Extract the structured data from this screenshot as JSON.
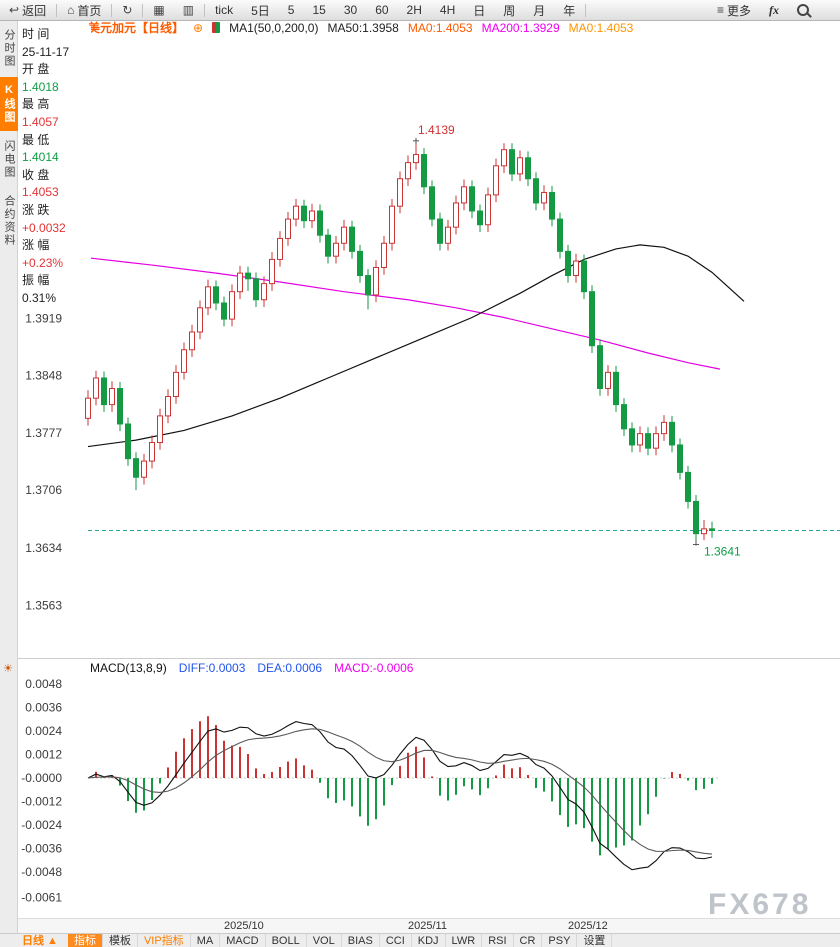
{
  "watermark": "FX678",
  "colors": {
    "up": "#cc3434",
    "down": "#149a43",
    "ma50": "#111111",
    "ma200": "#e400e4",
    "last_price": "#2aa79c",
    "accent_orange": "#ff7e00",
    "link_blue": "#2255ee",
    "magenta": "#f000f0"
  },
  "toolbar": {
    "items": [
      {
        "name": "back-button",
        "icon": "back-icon",
        "label": "返回",
        "sep": true
      },
      {
        "name": "home-button",
        "icon": "home-icon",
        "label": "首页",
        "sep": true
      },
      {
        "name": "refresh-button",
        "icon": "refresh-icon",
        "sep": true
      },
      {
        "name": "bar-chart-button",
        "icon": "bars-icon"
      },
      {
        "name": "volume-style-button",
        "icon": "grid-icon",
        "sep": true
      },
      {
        "name": "interval-tick",
        "label": "tick"
      },
      {
        "name": "interval-5d",
        "label": "5日"
      },
      {
        "name": "interval-5",
        "label": "5"
      },
      {
        "name": "interval-15",
        "label": "15"
      },
      {
        "name": "interval-30",
        "label": "30"
      },
      {
        "name": "interval-60",
        "label": "60"
      },
      {
        "name": "interval-2h",
        "label": "2H"
      },
      {
        "name": "interval-4h",
        "label": "4H"
      },
      {
        "name": "interval-day",
        "label": "日"
      },
      {
        "name": "interval-week",
        "label": "周"
      },
      {
        "name": "interval-month",
        "label": "月"
      },
      {
        "name": "interval-year",
        "label": "年",
        "sep": true
      },
      {
        "name": "more-button",
        "icon": "menu-icon",
        "label": "更多",
        "style": "push"
      },
      {
        "name": "fx-button",
        "label": "fx",
        "style": "fx"
      },
      {
        "name": "search-button",
        "icon": "search-icon",
        "style": "endpad"
      }
    ]
  },
  "left_tabs": [
    {
      "name": "tab-time-chart",
      "label": "分时图",
      "active": false
    },
    {
      "name": "tab-kline-chart",
      "label": "K线图",
      "active": true
    },
    {
      "name": "tab-lightning-chart",
      "label": "闪电图",
      "active": false
    },
    {
      "name": "tab-contract-info",
      "label": "合约资料",
      "active": false
    }
  ],
  "info_panel": {
    "rows": [
      {
        "label": "时 间",
        "value": "25-11-17",
        "cls": "k"
      },
      {
        "label": "开 盘",
        "value": "1.4018",
        "cls": "green"
      },
      {
        "label": "最 高",
        "value": "1.4057",
        "cls": "red"
      },
      {
        "label": "最 低",
        "value": "1.4014",
        "cls": "green"
      },
      {
        "label": "收 盘",
        "value": "1.4053",
        "cls": "red"
      },
      {
        "label": "涨 跌",
        "value": "+0.0032",
        "cls": "red"
      },
      {
        "label": "涨 幅",
        "value": "+0.23%",
        "cls": "red"
      },
      {
        "label": "振 幅",
        "value": "0.31%",
        "cls": "k"
      }
    ]
  },
  "chart_header": {
    "symbol": "美元加元【日线】",
    "add_icon": "⊕",
    "ma_label": "MA1(50,0,200,0)",
    "ma_values": [
      {
        "text": "MA50:1.3958",
        "color": "#222222"
      },
      {
        "text": "MA0:1.4053",
        "color": "#ff5a00"
      },
      {
        "text": "MA200:1.3929",
        "color": "#f000f0"
      },
      {
        "text": "MA0:1.4053",
        "color": "#ff9500"
      }
    ]
  },
  "macd_header": {
    "title": "MACD(13,8,9)",
    "items": [
      {
        "text": "DIFF:0.0003",
        "color": "#2255ee"
      },
      {
        "text": "DEA:0.0006",
        "color": "#2255ee"
      },
      {
        "text": "MACD:-0.0006",
        "color": "#f000f0"
      }
    ]
  },
  "bottom_bar": {
    "period_label": "日线",
    "period_arrow": "▲",
    "tabs": [
      {
        "key": "indicators",
        "label": "指标",
        "style": "selected"
      },
      {
        "key": "template",
        "label": "模板"
      },
      {
        "key": "vip",
        "label": "VIP指标",
        "style": "vip"
      },
      {
        "key": "ma",
        "label": "MA"
      },
      {
        "key": "macd",
        "label": "MACD"
      },
      {
        "key": "boll",
        "label": "BOLL"
      },
      {
        "key": "vol",
        "label": "VOL"
      },
      {
        "key": "bias",
        "label": "BIAS"
      },
      {
        "key": "cci",
        "label": "CCI"
      },
      {
        "key": "kdj",
        "label": "KDJ"
      },
      {
        "key": "lwr",
        "label": "LWR"
      },
      {
        "key": "rsi",
        "label": "RSI"
      },
      {
        "key": "cr",
        "label": "CR"
      },
      {
        "key": "psy",
        "label": "PSY"
      },
      {
        "key": "settings",
        "label": "设置"
      }
    ]
  },
  "chart_data": [
    {
      "type": "candlestick",
      "title": "美元加元 日线 (USD/CAD daily)",
      "y_range": [
        1.3514,
        1.4264
      ],
      "y_ticks": [
        "1.3919",
        "1.3848",
        "1.3777",
        "1.3706",
        "1.3634",
        "1.3563"
      ],
      "x_labels": [
        {
          "i": 20,
          "label": "2025/10"
        },
        {
          "i": 43,
          "label": "2025/11"
        },
        {
          "i": 63,
          "label": "2025/12"
        }
      ],
      "last_close": 1.3656,
      "annotations": {
        "high": {
          "i": 41,
          "price": 1.4139,
          "label": "1.4139"
        },
        "low": {
          "i": 76,
          "price": 1.3641,
          "label": "1.3641"
        }
      },
      "ma50": [
        [
          0,
          1.376
        ],
        [
          6,
          1.3768
        ],
        [
          12,
          1.378
        ],
        [
          18,
          1.3798
        ],
        [
          24,
          1.382
        ],
        [
          30,
          1.3845
        ],
        [
          36,
          1.387
        ],
        [
          42,
          1.3895
        ],
        [
          48,
          1.392
        ],
        [
          54,
          1.395
        ],
        [
          58,
          1.3972
        ],
        [
          62,
          1.3992
        ],
        [
          66,
          1.4005
        ],
        [
          69,
          1.401
        ],
        [
          72,
          1.4007
        ],
        [
          75,
          1.3996
        ],
        [
          78,
          1.3976
        ],
        [
          80,
          1.3958
        ],
        [
          82,
          1.394
        ]
      ],
      "ma200": [
        [
          0,
          1.3994
        ],
        [
          8,
          1.3985
        ],
        [
          16,
          1.3975
        ],
        [
          24,
          1.3964
        ],
        [
          32,
          1.3952
        ],
        [
          40,
          1.3942
        ],
        [
          46,
          1.3932
        ],
        [
          52,
          1.392
        ],
        [
          58,
          1.3906
        ],
        [
          64,
          1.3892
        ],
        [
          70,
          1.3876
        ],
        [
          75,
          1.3864
        ],
        [
          79,
          1.3856
        ]
      ],
      "candles": [
        [
          1.3795,
          1.383,
          1.3786,
          1.382
        ],
        [
          1.382,
          1.3854,
          1.3811,
          1.3845
        ],
        [
          1.3845,
          1.3853,
          1.3803,
          1.3812
        ],
        [
          1.3812,
          1.3841,
          1.3803,
          1.3832
        ],
        [
          1.3832,
          1.384,
          1.3779,
          1.3788
        ],
        [
          1.3788,
          1.3796,
          1.3736,
          1.3745
        ],
        [
          1.3745,
          1.3753,
          1.3706,
          1.3722
        ],
        [
          1.3722,
          1.3751,
          1.3713,
          1.3742
        ],
        [
          1.3742,
          1.3774,
          1.3733,
          1.3765
        ],
        [
          1.3765,
          1.3807,
          1.3756,
          1.3798
        ],
        [
          1.3798,
          1.3831,
          1.3789,
          1.3822
        ],
        [
          1.3822,
          1.3861,
          1.3813,
          1.3852
        ],
        [
          1.3852,
          1.3889,
          1.3843,
          1.388
        ],
        [
          1.388,
          1.3911,
          1.3871,
          1.3902
        ],
        [
          1.3902,
          1.3941,
          1.3893,
          1.3932
        ],
        [
          1.3932,
          1.3967,
          1.3923,
          1.3958
        ],
        [
          1.3958,
          1.3966,
          1.3929,
          1.3938
        ],
        [
          1.3938,
          1.3946,
          1.3909,
          1.3918
        ],
        [
          1.3918,
          1.3961,
          1.3909,
          1.3952
        ],
        [
          1.3952,
          1.3984,
          1.3943,
          1.3975
        ],
        [
          1.3975,
          1.3983,
          1.3953,
          1.3968
        ],
        [
          1.3968,
          1.3976,
          1.3933,
          1.3942
        ],
        [
          1.3942,
          1.3971,
          1.3933,
          1.3962
        ],
        [
          1.3962,
          1.4001,
          1.3953,
          1.3992
        ],
        [
          1.3992,
          1.4027,
          1.3983,
          1.4018
        ],
        [
          1.4018,
          1.4051,
          1.4009,
          1.4042
        ],
        [
          1.4042,
          1.4067,
          1.4033,
          1.4058
        ],
        [
          1.4058,
          1.4066,
          1.4031,
          1.404
        ],
        [
          1.404,
          1.4061,
          1.4031,
          1.4052
        ],
        [
          1.4052,
          1.406,
          1.4013,
          1.4022
        ],
        [
          1.4022,
          1.403,
          1.3987,
          1.3996
        ],
        [
          1.3996,
          1.4021,
          1.3987,
          1.4012
        ],
        [
          1.4012,
          1.4041,
          1.4003,
          1.4032
        ],
        [
          1.4032,
          1.404,
          1.3993,
          1.4002
        ],
        [
          1.4002,
          1.401,
          1.3963,
          1.3972
        ],
        [
          1.3972,
          1.398,
          1.393,
          1.3948
        ],
        [
          1.3948,
          1.3991,
          1.3939,
          1.3982
        ],
        [
          1.3982,
          1.4021,
          1.3973,
          1.4012
        ],
        [
          1.4012,
          1.4067,
          1.4003,
          1.4058
        ],
        [
          1.4058,
          1.4101,
          1.4049,
          1.4092
        ],
        [
          1.4092,
          1.4121,
          1.4083,
          1.4112
        ],
        [
          1.4112,
          1.4139,
          1.4103,
          1.4122
        ],
        [
          1.4122,
          1.413,
          1.4073,
          1.4082
        ],
        [
          1.4082,
          1.409,
          1.4033,
          1.4042
        ],
        [
          1.4042,
          1.405,
          1.4003,
          1.4012
        ],
        [
          1.4012,
          1.4041,
          1.4003,
          1.4032
        ],
        [
          1.4032,
          1.4071,
          1.4023,
          1.4062
        ],
        [
          1.4062,
          1.4091,
          1.4053,
          1.4082
        ],
        [
          1.4082,
          1.409,
          1.4043,
          1.4052
        ],
        [
          1.4052,
          1.406,
          1.4026,
          1.4035
        ],
        [
          1.4035,
          1.4081,
          1.4026,
          1.4072
        ],
        [
          1.4072,
          1.4117,
          1.4063,
          1.4108
        ],
        [
          1.4108,
          1.4136,
          1.4099,
          1.4128
        ],
        [
          1.4128,
          1.4136,
          1.4089,
          1.4098
        ],
        [
          1.4098,
          1.4127,
          1.4089,
          1.4118
        ],
        [
          1.4118,
          1.4126,
          1.4083,
          1.4092
        ],
        [
          1.4092,
          1.41,
          1.4053,
          1.4062
        ],
        [
          1.4062,
          1.4084,
          1.4053,
          1.4075
        ],
        [
          1.4075,
          1.4083,
          1.4033,
          1.4042
        ],
        [
          1.4042,
          1.405,
          1.3993,
          1.4002
        ],
        [
          1.4002,
          1.401,
          1.3963,
          1.3972
        ],
        [
          1.3972,
          1.3999,
          1.3963,
          1.399
        ],
        [
          1.399,
          1.3998,
          1.3943,
          1.3952
        ],
        [
          1.3952,
          1.396,
          1.3876,
          1.3885
        ],
        [
          1.3885,
          1.3893,
          1.3823,
          1.3832
        ],
        [
          1.3832,
          1.3861,
          1.3823,
          1.3852
        ],
        [
          1.3852,
          1.386,
          1.3803,
          1.3812
        ],
        [
          1.3812,
          1.382,
          1.3773,
          1.3782
        ],
        [
          1.3782,
          1.379,
          1.3753,
          1.3762
        ],
        [
          1.3762,
          1.3785,
          1.3753,
          1.3776
        ],
        [
          1.3776,
          1.3784,
          1.3749,
          1.3758
        ],
        [
          1.3758,
          1.3785,
          1.3749,
          1.3776
        ],
        [
          1.3776,
          1.3799,
          1.3767,
          1.379
        ],
        [
          1.379,
          1.3798,
          1.3753,
          1.3762
        ],
        [
          1.3762,
          1.377,
          1.3719,
          1.3728
        ],
        [
          1.3728,
          1.3736,
          1.3683,
          1.3692
        ],
        [
          1.3692,
          1.37,
          1.3641,
          1.3652
        ],
        [
          1.3652,
          1.3669,
          1.3644,
          1.3658
        ],
        [
          1.3658,
          1.3667,
          1.3647,
          1.3656
        ]
      ]
    },
    {
      "type": "macd",
      "params": [
        13,
        8,
        9
      ],
      "y_ticks": [
        "0.0048",
        "0.0036",
        "0.0024",
        "0.0012",
        "-0.0000",
        "-0.0012",
        "-0.0024",
        "-0.0036",
        "-0.0048",
        "-0.0061"
      ]
    }
  ]
}
